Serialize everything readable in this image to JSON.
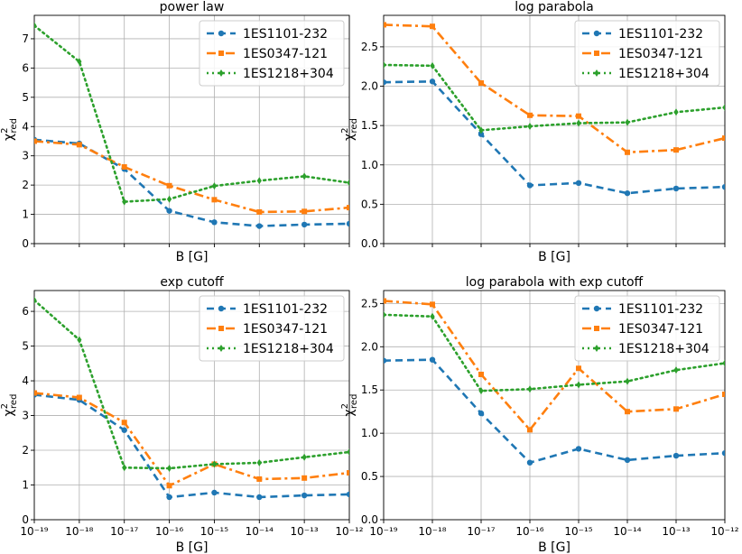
{
  "chart_data": [
    {
      "type": "line",
      "title": "power law",
      "xlabel": "B [G]",
      "ylabel": "χ²_red",
      "ylim": [
        0,
        7.8
      ],
      "yticks": [
        0,
        1,
        2,
        3,
        4,
        5,
        6,
        7
      ],
      "xlim": [
        -19,
        -12
      ],
      "x_log_exponents": [
        -19,
        -18,
        -17,
        -16,
        -15,
        -14,
        -13,
        -12
      ],
      "show_x_ticklabels": false,
      "grid": true,
      "legend_position": "top-right",
      "series": [
        {
          "name": "1ES1101-232",
          "color": "#1f77b4",
          "linestyle": "dashed",
          "marker": "circle",
          "values": [
            3.55,
            3.42,
            2.55,
            1.12,
            0.73,
            0.6,
            0.65,
            0.68
          ]
        },
        {
          "name": "1ES0347-121",
          "color": "#ff7f0e",
          "linestyle": "dashdot",
          "marker": "square",
          "values": [
            3.5,
            3.38,
            2.62,
            1.98,
            1.5,
            1.08,
            1.1,
            1.23
          ]
        },
        {
          "name": "1ES1218+304",
          "color": "#2ca02c",
          "linestyle": "dotted",
          "marker": "diamond",
          "values": [
            7.45,
            6.22,
            1.43,
            1.52,
            1.97,
            2.15,
            2.3,
            2.08
          ]
        }
      ]
    },
    {
      "type": "line",
      "title": "log parabola",
      "xlabel": "B [G]",
      "ylabel": "χ²_red",
      "ylim": [
        0,
        2.9
      ],
      "yticks": [
        0.0,
        0.5,
        1.0,
        1.5,
        2.0,
        2.5
      ],
      "ytick_format": "1",
      "xlim": [
        -19,
        -12
      ],
      "x_log_exponents": [
        -19,
        -18,
        -17,
        -16,
        -15,
        -14,
        -13,
        -12
      ],
      "show_x_ticklabels": false,
      "grid": true,
      "legend_position": "top-right",
      "series": [
        {
          "name": "1ES1101-232",
          "color": "#1f77b4",
          "linestyle": "dashed",
          "marker": "circle",
          "values": [
            2.05,
            2.06,
            1.39,
            0.74,
            0.77,
            0.64,
            0.7,
            0.72
          ]
        },
        {
          "name": "1ES0347-121",
          "color": "#ff7f0e",
          "linestyle": "dashdot",
          "marker": "square",
          "values": [
            2.78,
            2.76,
            2.04,
            1.63,
            1.62,
            1.16,
            1.19,
            1.34
          ]
        },
        {
          "name": "1ES1218+304",
          "color": "#2ca02c",
          "linestyle": "dotted",
          "marker": "diamond",
          "values": [
            2.27,
            2.26,
            1.44,
            1.49,
            1.53,
            1.54,
            1.67,
            1.73
          ]
        }
      ]
    },
    {
      "type": "line",
      "title": "exp cutoff",
      "xlabel": "B [G]",
      "ylabel": "χ²_red",
      "ylim": [
        0,
        6.6
      ],
      "yticks": [
        0,
        1,
        2,
        3,
        4,
        5,
        6
      ],
      "xlim": [
        -19,
        -12
      ],
      "x_log_exponents": [
        -19,
        -18,
        -17,
        -16,
        -15,
        -14,
        -13,
        -12
      ],
      "show_x_ticklabels": true,
      "grid": true,
      "legend_position": "top-right",
      "series": [
        {
          "name": "1ES1101-232",
          "color": "#1f77b4",
          "linestyle": "dashed",
          "marker": "circle",
          "values": [
            3.6,
            3.45,
            2.58,
            0.65,
            0.78,
            0.65,
            0.7,
            0.73
          ]
        },
        {
          "name": "1ES0347-121",
          "color": "#ff7f0e",
          "linestyle": "dashdot",
          "marker": "square",
          "values": [
            3.65,
            3.52,
            2.8,
            0.98,
            1.6,
            1.17,
            1.2,
            1.35
          ]
        },
        {
          "name": "1ES1218+304",
          "color": "#2ca02c",
          "linestyle": "dotted",
          "marker": "diamond",
          "values": [
            6.32,
            5.18,
            1.5,
            1.48,
            1.6,
            1.64,
            1.8,
            1.95
          ]
        }
      ]
    },
    {
      "type": "line",
      "title": "log parabola with exp cutoff",
      "xlabel": "B [G]",
      "ylabel": "χ²_red",
      "ylim": [
        0,
        2.65
      ],
      "yticks": [
        0.0,
        0.5,
        1.0,
        1.5,
        2.0,
        2.5
      ],
      "ytick_format": "1",
      "xlim": [
        -19,
        -12
      ],
      "x_log_exponents": [
        -19,
        -18,
        -17,
        -16,
        -15,
        -14,
        -13,
        -12
      ],
      "show_x_ticklabels": true,
      "grid": true,
      "legend_position": "top-right",
      "series": [
        {
          "name": "1ES1101-232",
          "color": "#1f77b4",
          "linestyle": "dashed",
          "marker": "circle",
          "values": [
            1.84,
            1.85,
            1.23,
            0.66,
            0.82,
            0.69,
            0.74,
            0.77
          ]
        },
        {
          "name": "1ES0347-121",
          "color": "#ff7f0e",
          "linestyle": "dashdot",
          "marker": "square",
          "values": [
            2.53,
            2.49,
            1.68,
            1.04,
            1.75,
            1.25,
            1.28,
            1.45
          ]
        },
        {
          "name": "1ES1218+304",
          "color": "#2ca02c",
          "linestyle": "dotted",
          "marker": "diamond",
          "values": [
            2.37,
            2.35,
            1.49,
            1.51,
            1.56,
            1.6,
            1.73,
            1.81
          ]
        }
      ]
    }
  ]
}
